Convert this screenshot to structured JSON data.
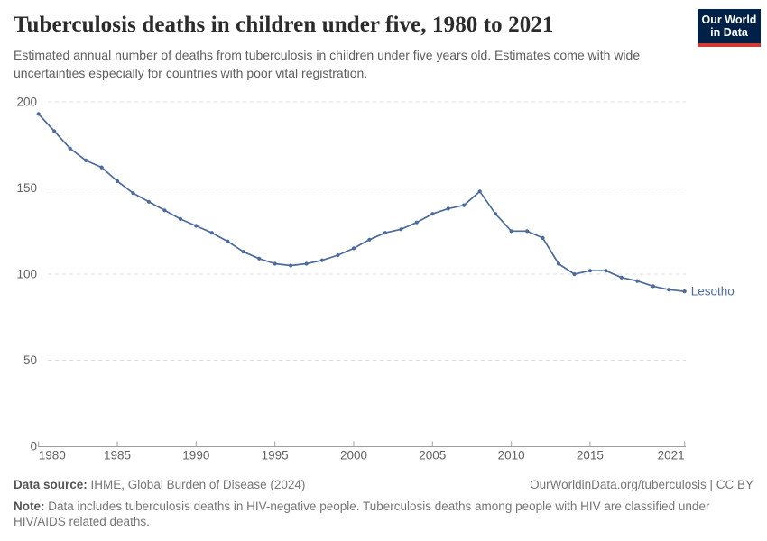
{
  "header": {
    "title": "Tuberculosis deaths in children under five, 1980 to 2021",
    "subtitle": "Estimated annual number of deaths from tuberculosis in children under five years old. Estimates come with wide uncertainties especially for countries with poor vital registration."
  },
  "logo": {
    "line1": "Our World",
    "line2": "in Data"
  },
  "chart_data": {
    "type": "line",
    "title": "Tuberculosis deaths in children under five, 1980 to 2021",
    "x": [
      1980,
      1981,
      1982,
      1983,
      1984,
      1985,
      1986,
      1987,
      1988,
      1989,
      1990,
      1991,
      1992,
      1993,
      1994,
      1995,
      1996,
      1997,
      1998,
      1999,
      2000,
      2001,
      2002,
      2003,
      2004,
      2005,
      2006,
      2007,
      2008,
      2009,
      2010,
      2011,
      2012,
      2013,
      2014,
      2015,
      2016,
      2017,
      2018,
      2019,
      2020,
      2021
    ],
    "series": [
      {
        "name": "Lesotho",
        "color": "#4c6a9c",
        "values": [
          193,
          183,
          173,
          166,
          162,
          154,
          147,
          142,
          137,
          132,
          128,
          124,
          119,
          113,
          109,
          106,
          105,
          106,
          108,
          111,
          115,
          120,
          124,
          126,
          130,
          135,
          138,
          140,
          148,
          135,
          125,
          125,
          121,
          106,
          100,
          102,
          102,
          98,
          96,
          93,
          91,
          90
        ]
      }
    ],
    "x_ticks": [
      1980,
      1985,
      1990,
      1995,
      2000,
      2005,
      2010,
      2015,
      2021
    ],
    "x_tick_labels": [
      "1980",
      "1985",
      "1990",
      "1995",
      "2000",
      "2005",
      "2010",
      "2015",
      "2021"
    ],
    "y_ticks": [
      0,
      50,
      100,
      150,
      200
    ],
    "y_tick_labels": [
      "0",
      "50",
      "100",
      "150",
      "200"
    ],
    "xlim": [
      1980,
      2021
    ],
    "ylim": [
      0,
      200
    ],
    "grid": "horizontal dashed",
    "legend": "inline label at line end",
    "markers": true
  },
  "footer": {
    "datasource_label": "Data source:",
    "datasource_value": "IHME, Global Burden of Disease (2024)",
    "license": "OurWorldinData.org/tuberculosis | CC BY",
    "note_label": "Note:",
    "note_value": "Data includes tuberculosis deaths in HIV-negative people. Tuberculosis deaths among people with HIV are classified under HIV/AIDS related deaths."
  },
  "colors": {
    "line": "#4c6a9c",
    "axis_text": "#616161",
    "grid": "#dcdcdc",
    "axis_line": "#9e9e9e",
    "logo_bg": "#002147",
    "logo_stripe": "#d13a32",
    "title_text": "#2b2b2b",
    "subtitle_text": "#5e5e5e",
    "footer_text": "#757575"
  }
}
